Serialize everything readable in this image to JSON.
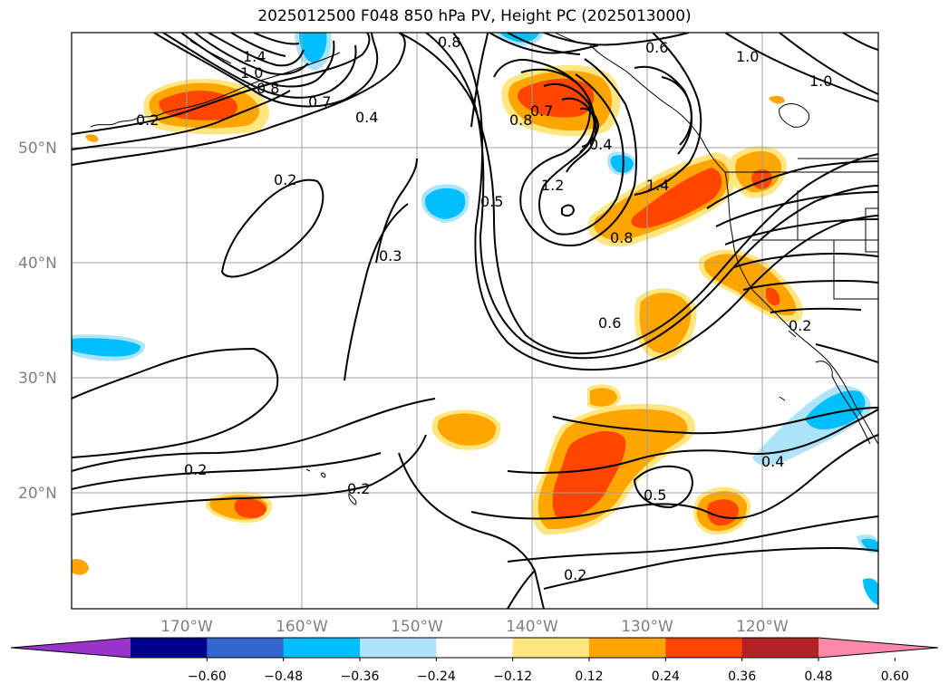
{
  "title": "2025012500 F048 850 hPa PV, Height PC (2025013000)",
  "axes": {
    "lat_ticks": [
      "50°N",
      "40°N",
      "30°N",
      "20°N"
    ],
    "lon_ticks": [
      "170°W",
      "160°W",
      "150°W",
      "140°W",
      "130°W",
      "120°W"
    ]
  },
  "colorbar": {
    "tick_labels": [
      "−0.60",
      "−0.48",
      "−0.36",
      "−0.24",
      "−0.12",
      "0.12",
      "0.24",
      "0.36",
      "0.48",
      "0.60"
    ],
    "colors": [
      "#9933cc",
      "#00008b",
      "#3366cc",
      "#00bfff",
      "#aee4fa",
      "#ffffff",
      "#ffe680",
      "#ffa500",
      "#ff4500",
      "#b22222",
      "#ff88aa"
    ]
  },
  "contour_labels": [
    "1.4",
    "1.0",
    "0.8",
    "0.7",
    "0.4",
    "0.8",
    "0.6",
    "1.0",
    "1.0",
    "0.2",
    "0.2",
    "0.5",
    "0.3",
    "1.2",
    "1.4",
    "0.8",
    "0.6",
    "0.2",
    "0.5",
    "0.4",
    "0.2",
    "0.2",
    "0.2",
    "0.8",
    "0.7",
    "0.4"
  ]
}
